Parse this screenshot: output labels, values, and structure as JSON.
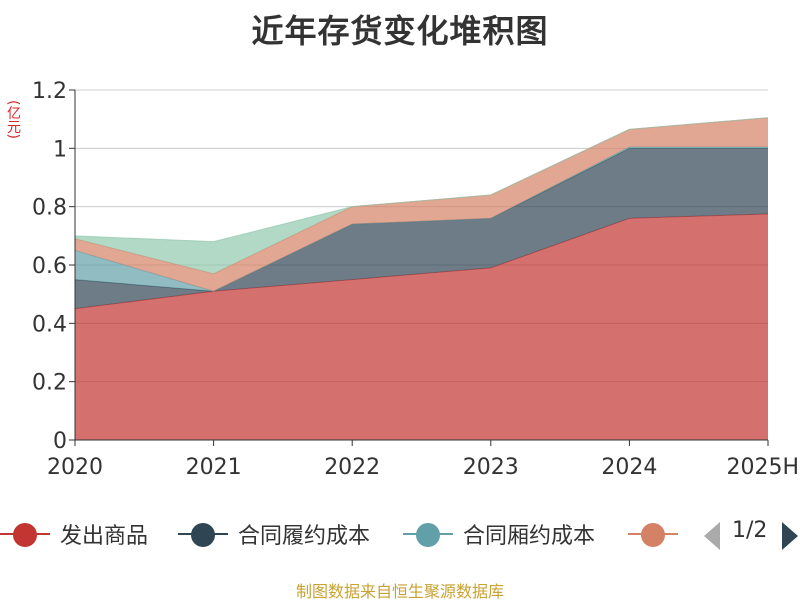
{
  "chart_data": {
    "type": "area",
    "stacked": true,
    "title": "近年存货变化堆积图",
    "ylabel": "(亿元)",
    "categories": [
      "2020",
      "2021",
      "2022",
      "2023",
      "2024",
      "2025H"
    ],
    "y_ticks": [
      "0",
      "0.2",
      "0.4",
      "0.6",
      "0.8",
      "1",
      "1.2"
    ],
    "ylim": [
      0,
      1.2
    ],
    "grid": true,
    "series": [
      {
        "name": "发出商品",
        "color": "#c23531",
        "values": [
          0.45,
          0.51,
          0.55,
          0.59,
          0.76,
          0.775
        ]
      },
      {
        "name": "合同履约成本",
        "color": "#2f4554",
        "values": [
          0.1,
          0.0,
          0.19,
          0.17,
          0.24,
          0.225
        ]
      },
      {
        "name": "合同厢约成本",
        "color": "#61a0a8",
        "values": [
          0.1,
          0.0,
          0.0,
          0.0,
          0.005,
          0.005
        ]
      },
      {
        "name": "",
        "color": "#d48265",
        "values": [
          0.04,
          0.06,
          0.06,
          0.08,
          0.06,
          0.1
        ]
      },
      {
        "name": "",
        "color": "#91c7ae",
        "values": [
          0.01,
          0.11,
          0.0,
          0.0,
          0.0,
          0.0
        ]
      }
    ]
  },
  "legend": {
    "items": [
      {
        "label": "发出商品",
        "color": "#c23531"
      },
      {
        "label": "合同履约成本",
        "color": "#2f4554"
      },
      {
        "label": "合同厢约成本",
        "color": "#61a0a8"
      },
      {
        "label": "",
        "color": "#d48265"
      }
    ],
    "page_text": "1/2"
  },
  "source_text": "制图数据来自恒生聚源数据库"
}
